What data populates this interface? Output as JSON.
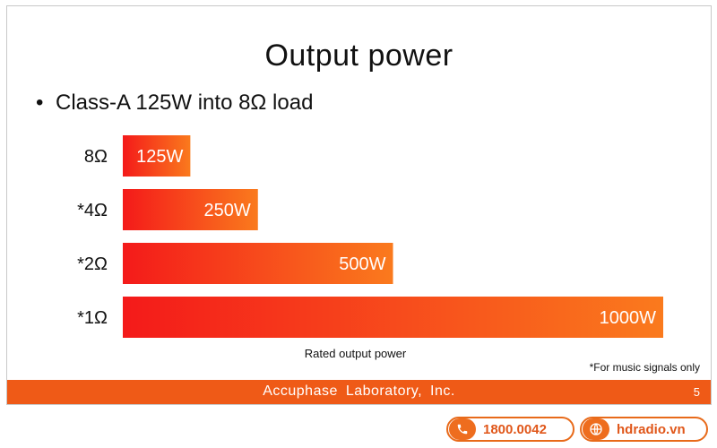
{
  "slide": {
    "title": "Output power",
    "bullet": "Class-A 125W into 8Ω load",
    "footer_text": "Accuphase  Laboratory,  Inc.",
    "page_number": "5",
    "footnote": "*For music signals only"
  },
  "chart_data": {
    "type": "bar",
    "orientation": "horizontal",
    "categories": [
      "8Ω",
      "*4Ω",
      "*2Ω",
      "*1Ω"
    ],
    "values": [
      125,
      250,
      500,
      1000
    ],
    "value_labels": [
      "125W",
      "250W",
      "500W",
      "1000W"
    ],
    "xlabel": "Rated output power",
    "xlim": [
      0,
      1000
    ],
    "grid": false,
    "bar_gradient": [
      "#f41a1a",
      "#fa7a1d"
    ]
  },
  "contact": {
    "phone": "1800.0042",
    "website": "hdradio.vn"
  }
}
